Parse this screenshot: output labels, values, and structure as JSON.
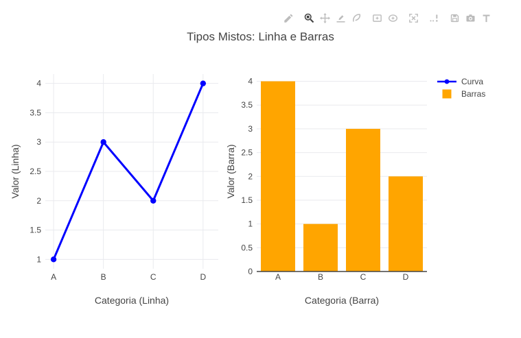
{
  "page": {
    "title": "Tipos Mistos: Linha e Barras"
  },
  "modebar": {
    "icons": [
      {
        "name": "edit-pencil-icon",
        "active": false
      },
      {
        "name": "zoom-icon",
        "active": true
      },
      {
        "name": "pan-icon",
        "active": false
      },
      {
        "name": "draw-line-icon",
        "active": false
      },
      {
        "name": "draw-openpath-icon",
        "active": false
      },
      {
        "name": "draw-rect-icon",
        "active": false
      },
      {
        "name": "draw-ellipse-icon",
        "active": false
      },
      {
        "name": "autoscale-icon",
        "active": false
      },
      {
        "name": "spikelines-icon",
        "active": false
      },
      {
        "name": "save-icon",
        "active": false
      },
      {
        "name": "camera-icon",
        "active": false
      },
      {
        "name": "text-icon",
        "active": false
      }
    ]
  },
  "legend": {
    "position": "top-right",
    "items": [
      {
        "label": "Curva",
        "marker": "line",
        "color": "#0000ff"
      },
      {
        "label": "Barras",
        "marker": "square",
        "color": "#ffa500"
      }
    ]
  },
  "chart_data": [
    {
      "type": "line",
      "series_name": "Curva",
      "categories": [
        "A",
        "B",
        "C",
        "D"
      ],
      "values": [
        1,
        3,
        2,
        4
      ],
      "xlabel": "Categoria (Linha)",
      "ylabel": "Valor (Linha)",
      "ylim": [
        0.84,
        4.16
      ],
      "yticks": [
        1,
        1.5,
        2,
        2.5,
        3,
        3.5,
        4
      ],
      "color": "#0000ff",
      "grid": true,
      "marker": "dot"
    },
    {
      "type": "bar",
      "series_name": "Barras",
      "categories": [
        "A",
        "B",
        "C",
        "D"
      ],
      "values": [
        4,
        1,
        3,
        2
      ],
      "xlabel": "Categoria (Barra)",
      "ylabel": "Valor (Barra)",
      "ylim": [
        0,
        4.21
      ],
      "yticks": [
        0,
        0.5,
        1,
        1.5,
        2,
        2.5,
        3,
        3.5,
        4
      ],
      "color": "#ffa500",
      "grid": true
    }
  ],
  "colors": {
    "text": "#444444",
    "grid": "#e9eaee",
    "zeroline": "#444444",
    "line_series": "#0000ff",
    "bar_series": "#ffa500",
    "modebar_icon": "#bcbcbc",
    "modebar_icon_active": "#444444",
    "background": "#ffffff"
  }
}
